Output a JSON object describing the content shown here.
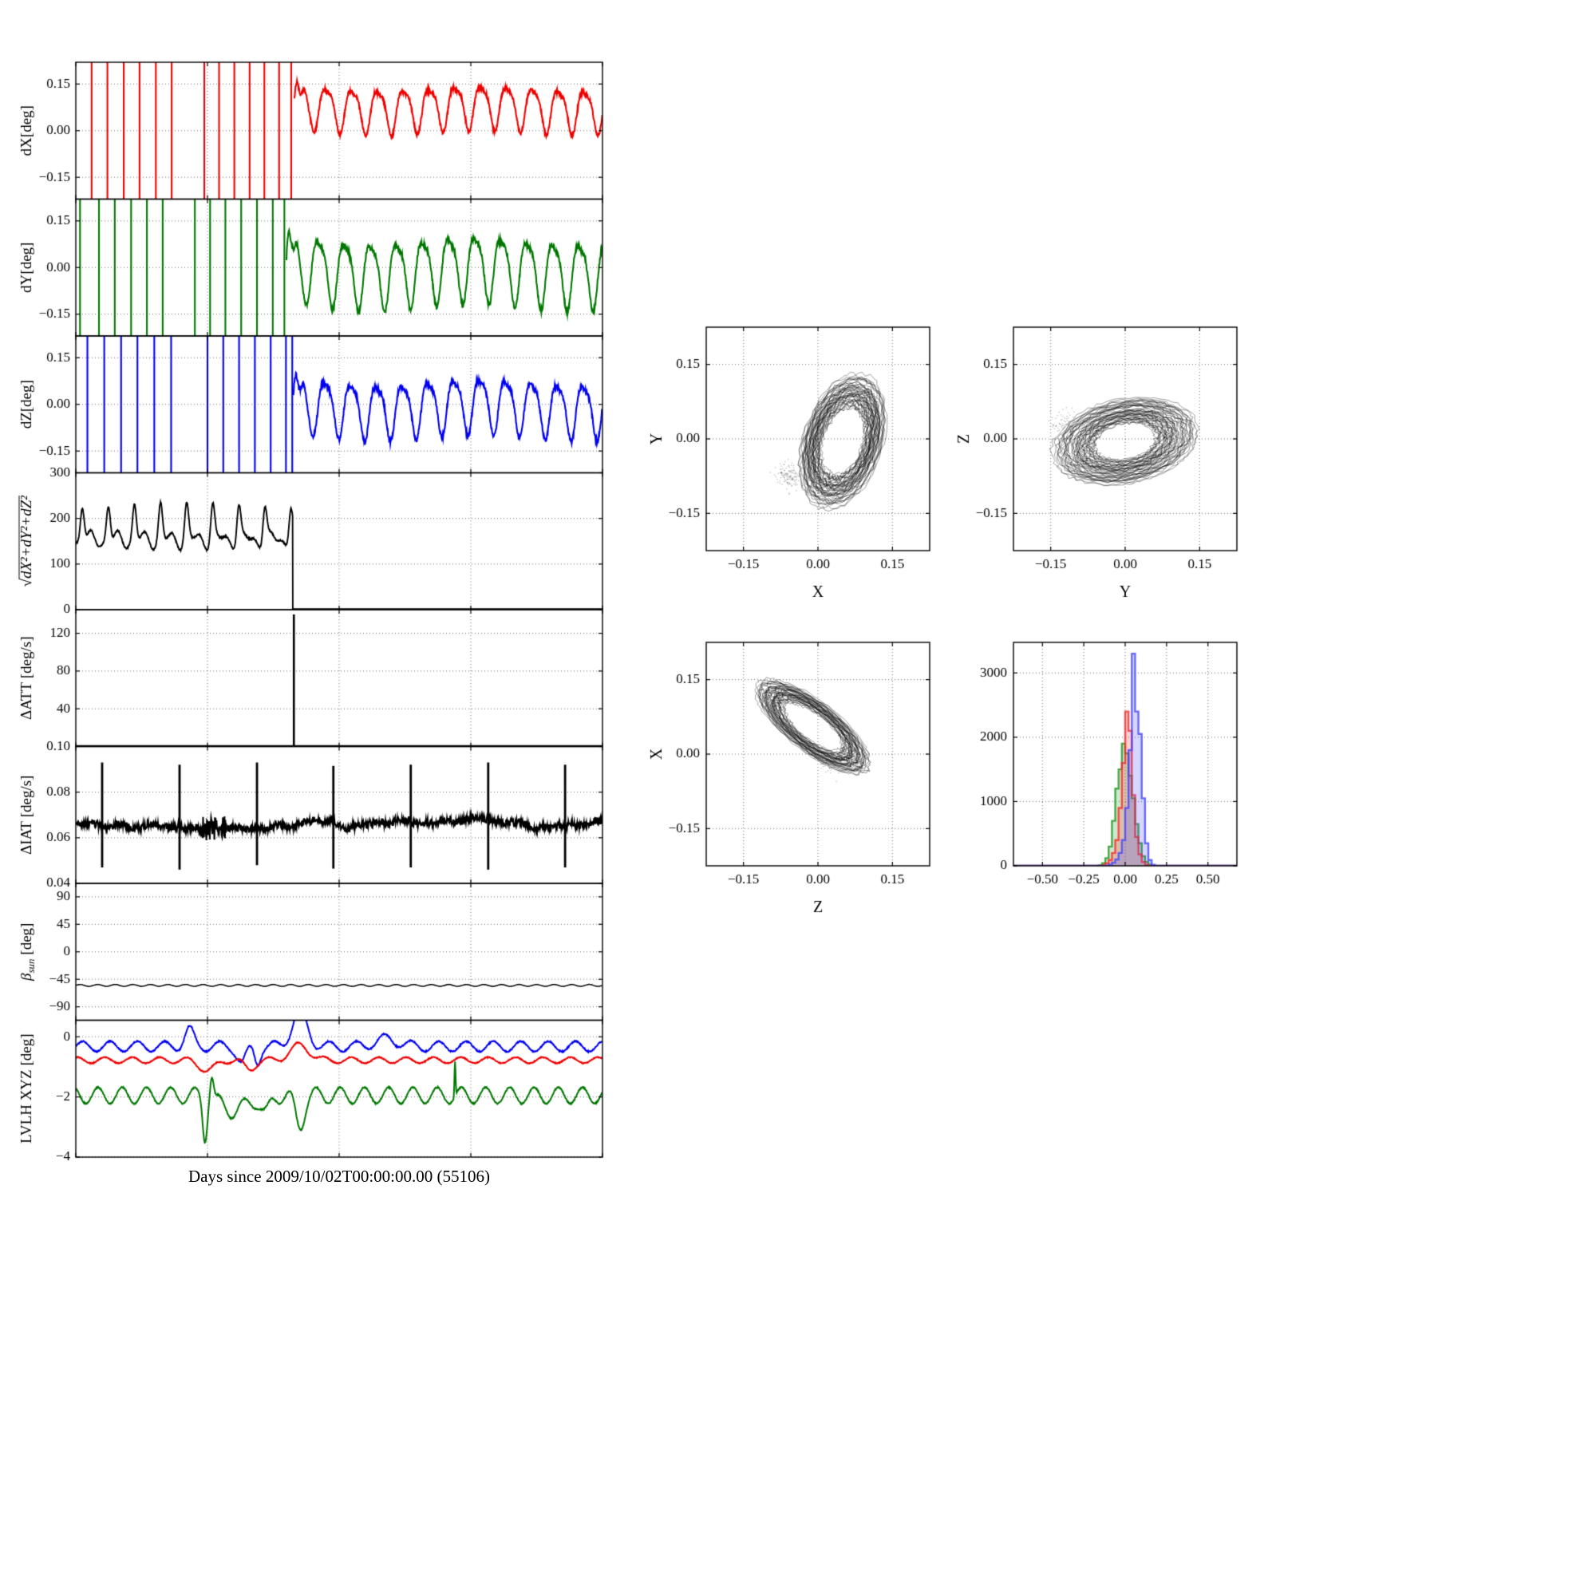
{
  "figure": {
    "background": "#ffffff",
    "xlabel": "Days since 2009/10/02T00:00:00.00 (55106)"
  },
  "chart_data": [
    {
      "id": "dX",
      "type": "line",
      "panel": 0,
      "color": "#ee0000",
      "ylabel_rich": [
        {
          "t": "dX[deg]"
        }
      ],
      "xlim": [
        0,
        1
      ],
      "ylim": [
        -0.22,
        0.22
      ],
      "ytick_vals": [
        -0.15,
        0.0,
        0.15
      ],
      "ytick_labels": [
        "−0.15",
        "0.00",
        "0.15"
      ],
      "grid": true,
      "signal": {
        "kind": "sat_osc",
        "spike_times": [
          0.03,
          0.06,
          0.091,
          0.121,
          0.152,
          0.182,
          0.244,
          0.272,
          0.301,
          0.33,
          0.358,
          0.386,
          0.409
        ],
        "osc": {
          "start": 0.415,
          "mean": 0.075,
          "amp": 0.068,
          "period": 0.049,
          "noise": 0.006
        }
      }
    },
    {
      "id": "dY",
      "type": "line",
      "panel": 1,
      "color": "#007700",
      "ylabel_rich": [
        {
          "t": "dY[deg]"
        }
      ],
      "xlim": [
        0,
        1
      ],
      "ylim": [
        -0.22,
        0.22
      ],
      "ytick_vals": [
        -0.15,
        0.0,
        0.15
      ],
      "ytick_labels": [
        "−0.15",
        "0.00",
        "0.15"
      ],
      "grid": true,
      "signal": {
        "kind": "sat_osc",
        "spike_times": [
          0.008,
          0.044,
          0.074,
          0.105,
          0.135,
          0.165,
          0.226,
          0.255,
          0.284,
          0.314,
          0.344,
          0.374,
          0.396
        ],
        "osc": {
          "start": 0.4,
          "mean": -0.005,
          "amp": 0.102,
          "period": 0.0495,
          "noise": 0.007
        }
      }
    },
    {
      "id": "dZ",
      "type": "line",
      "panel": 2,
      "color": "#0000ee",
      "ylabel_rich": [
        {
          "t": "dZ[deg]"
        }
      ],
      "xlim": [
        0,
        1
      ],
      "ylim": [
        -0.22,
        0.22
      ],
      "ytick_vals": [
        -0.15,
        0.0,
        0.15
      ],
      "ytick_labels": [
        "−0.15",
        "0.00",
        "0.15"
      ],
      "grid": true,
      "signal": {
        "kind": "sat_osc",
        "spike_times": [
          0.022,
          0.054,
          0.086,
          0.117,
          0.149,
          0.181,
          0.25,
          0.28,
          0.31,
          0.34,
          0.37,
          0.399,
          0.411
        ],
        "osc": {
          "start": 0.413,
          "mean": -0.005,
          "amp": 0.085,
          "period": 0.049,
          "noise": 0.007
        }
      }
    },
    {
      "id": "dnorm",
      "type": "line",
      "panel": 3,
      "color": "#000000",
      "ylabel_rich": [
        {
          "t": "√",
          "italic": true
        },
        {
          "t": "dX²+dY²+dZ²",
          "italic": true,
          "over": true
        }
      ],
      "xlim": [
        0,
        1
      ],
      "ylim": [
        0,
        300
      ],
      "ytick_vals": [
        0,
        100,
        200,
        300
      ],
      "ytick_labels": [
        "0",
        "100",
        "200",
        "300"
      ],
      "grid": true,
      "signal": {
        "kind": "peaks_drop",
        "drop": 0.412,
        "period": 0.0495,
        "base": 152,
        "peak": 80,
        "after_value": 1.5
      }
    },
    {
      "id": "dATT",
      "type": "line",
      "panel": 4,
      "color": "#000000",
      "ylabel_rich": [
        {
          "t": "ΔATT [deg/s]"
        }
      ],
      "xlim": [
        0,
        1
      ],
      "ylim": [
        0,
        145
      ],
      "ytick_vals": [
        40,
        80,
        120
      ],
      "ytick_labels": [
        "40",
        "80",
        "120"
      ],
      "grid": true,
      "signal": {
        "kind": "zero_spike",
        "t": 0.414,
        "height": 140,
        "baseline": 0.8
      }
    },
    {
      "id": "dIAT",
      "type": "line",
      "panel": 5,
      "color": "#000000",
      "ylabel_rich": [
        {
          "t": "ΔIAT [deg/s]"
        }
      ],
      "xlim": [
        0,
        1
      ],
      "ylim": [
        0.04,
        0.1
      ],
      "ytick_vals": [
        0.04,
        0.06,
        0.08,
        0.1
      ],
      "ytick_labels": [
        "0.04",
        "0.06",
        "0.08",
        "0.10"
      ],
      "grid": true,
      "signal": {
        "kind": "noisy_spikes",
        "baseline": 0.0655,
        "noise": 0.0016,
        "burst": [
          0.235,
          0.285
        ],
        "spikes": [
          {
            "t": 0.05,
            "hi": 0.093,
            "lo": 0.047
          },
          {
            "t": 0.197,
            "hi": 0.092,
            "lo": 0.046
          },
          {
            "t": 0.344,
            "hi": 0.093,
            "lo": 0.048
          },
          {
            "t": 0.489,
            "hi": 0.0915,
            "lo": 0.0465
          },
          {
            "t": 0.636,
            "hi": 0.092,
            "lo": 0.047
          },
          {
            "t": 0.783,
            "hi": 0.093,
            "lo": 0.046
          },
          {
            "t": 0.929,
            "hi": 0.092,
            "lo": 0.047
          }
        ]
      }
    },
    {
      "id": "beta_sun",
      "type": "line",
      "panel": 6,
      "color": "#000000",
      "ylabel_rich": [
        {
          "t": "β",
          "italic": true
        },
        {
          "t": "sun",
          "italic": true,
          "sub": true
        },
        {
          "t": " [deg]"
        }
      ],
      "xlim": [
        0,
        1
      ],
      "ylim": [
        -112,
        112
      ],
      "ytick_vals": [
        -90,
        -45,
        0,
        45,
        90
      ],
      "ytick_labels": [
        "−90",
        "−45",
        "0",
        "45",
        "90"
      ],
      "grid": true,
      "signal": {
        "kind": "const_ripple",
        "value": -55,
        "ripple": 1.5,
        "cycles": 30
      }
    },
    {
      "id": "lvlh",
      "type": "line",
      "panel": 7,
      "color": "#000000",
      "ylabel_rich": [
        {
          "t": "LVLH XYZ [deg]"
        }
      ],
      "xlim": [
        0,
        1
      ],
      "ylim": [
        -4,
        0.55
      ],
      "ytick_vals": [
        -4,
        -2,
        0
      ],
      "ytick_labels": [
        "−4",
        "−2",
        "0"
      ],
      "grid": true,
      "signal": {
        "kind": "multi_osc",
        "series": [
          {
            "name": "Z",
            "color": "#0000ee",
            "base": -0.32,
            "amp": 0.17,
            "period": 0.052,
            "phase": 0.0,
            "noise": 0.02,
            "events": [
              {
                "tc": 0.215,
                "w": 0.012,
                "h": 0.55
              },
              {
                "tc": 0.315,
                "w": 0.012,
                "h": -0.55
              },
              {
                "tc": 0.345,
                "w": 0.008,
                "h": -0.5
              },
              {
                "tc": 0.425,
                "w": 0.02,
                "h": 1.15
              },
              {
                "tc": 0.59,
                "w": 0.03,
                "h": 0.25
              }
            ]
          },
          {
            "name": "X",
            "color": "#ee0000",
            "base": -0.78,
            "amp": 0.1,
            "period": 0.052,
            "phase": 1.2,
            "noise": 0.015,
            "events": [
              {
                "tc": 0.25,
                "w": 0.02,
                "h": -0.35
              },
              {
                "tc": 0.33,
                "w": 0.015,
                "h": -0.3
              },
              {
                "tc": 0.425,
                "w": 0.025,
                "h": 0.5
              }
            ]
          },
          {
            "name": "Y",
            "color": "#007700",
            "base": -1.95,
            "amp": 0.27,
            "period": 0.046,
            "phase": 2.1,
            "noise": 0.02,
            "events": [
              {
                "tc": 0.245,
                "w": 0.006,
                "h": -1.3
              },
              {
                "tc": 0.258,
                "w": 0.005,
                "h": 0.8
              },
              {
                "tc": 0.3,
                "w": 0.035,
                "h": -0.5
              },
              {
                "tc": 0.36,
                "w": 0.012,
                "h": -0.6
              },
              {
                "tc": 0.425,
                "w": 0.012,
                "h": -1.0
              },
              {
                "tc": 0.72,
                "w": 0.0015,
                "h": 1.15
              }
            ]
          }
        ]
      }
    },
    {
      "id": "xy",
      "type": "trajectory-scatter",
      "xlabel": "X",
      "ylabel": "Y",
      "xlim": [
        -0.225,
        0.225
      ],
      "ylim": [
        -0.225,
        0.225
      ],
      "tick_vals": [
        -0.15,
        0.0,
        0.15
      ],
      "tick_labels": [
        "−0.15",
        "0.00",
        "0.15"
      ],
      "grid": true,
      "traj": {
        "n": 3600,
        "center": [
          0.05,
          -0.005
        ],
        "rx": 0.06,
        "ry": 0.105,
        "tilt_deg": -18,
        "rnoise": 0.22
      },
      "extra_dots": {
        "n": 130,
        "center": [
          -0.06,
          -0.075
        ],
        "sd": 0.013
      }
    },
    {
      "id": "yz",
      "type": "trajectory-scatter",
      "xlabel": "Y",
      "ylabel": "Z",
      "xlim": [
        -0.225,
        0.225
      ],
      "ylim": [
        -0.225,
        0.225
      ],
      "tick_vals": [
        -0.15,
        0.0,
        0.15
      ],
      "tick_labels": [
        "−0.15",
        "0.00",
        "0.15"
      ],
      "grid": true,
      "traj": {
        "n": 3600,
        "center": [
          0.0,
          -0.005
        ],
        "rx": 0.105,
        "ry": 0.06,
        "tilt_deg": 12,
        "rnoise": 0.3
      },
      "extra_dots": {
        "n": 80,
        "center": [
          -0.12,
          0.03
        ],
        "sd": 0.015
      }
    },
    {
      "id": "zx",
      "type": "trajectory-scatter",
      "xlabel": "Z",
      "ylabel": "X",
      "xlim": [
        -0.225,
        0.225
      ],
      "ylim": [
        -0.225,
        0.225
      ],
      "tick_vals": [
        -0.15,
        0.0,
        0.15
      ],
      "tick_labels": [
        "−0.15",
        "0.00",
        "0.15"
      ],
      "grid": true,
      "traj": {
        "n": 3200,
        "center": [
          -0.01,
          0.055
        ],
        "rx": 0.105,
        "ry": 0.038,
        "tilt_deg": -38,
        "rnoise": 0.22
      },
      "extra_dots": {
        "n": 40,
        "center": [
          0.02,
          -0.02
        ],
        "sd": 0.01
      }
    },
    {
      "id": "hist",
      "type": "histogram",
      "xlim": [
        -0.675,
        0.675
      ],
      "ylim": [
        0,
        3475
      ],
      "xtick_vals": [
        -0.5,
        -0.25,
        0.0,
        0.25,
        0.5
      ],
      "xtick_labels": [
        "−0.50",
        "−0.25",
        "0.00",
        "0.25",
        "0.50"
      ],
      "ytick_vals": [
        0,
        1000,
        2000,
        3000
      ],
      "ytick_labels": [
        "0",
        "1000",
        "2000",
        "3000"
      ],
      "grid": true,
      "bin_edges_start": -0.2,
      "bin_width": 0.02,
      "series": [
        {
          "name": "dY",
          "color": "#1e961e",
          "counts": [
            0,
            0,
            10,
            40,
            120,
            300,
            700,
            1200,
            1500,
            1900,
            1750,
            1400,
            1050,
            650,
            350,
            150,
            60,
            20,
            5,
            0
          ]
        },
        {
          "name": "dX",
          "color": "#ff2828",
          "counts": [
            0,
            0,
            0,
            10,
            40,
            90,
            200,
            400,
            900,
            1600,
            2400,
            2100,
            1100,
            450,
            180,
            60,
            15,
            0,
            0,
            0
          ]
        },
        {
          "name": "dZ",
          "color": "#4646ff",
          "counts": [
            0,
            0,
            0,
            0,
            0,
            20,
            50,
            100,
            200,
            400,
            900,
            1800,
            3300,
            2400,
            2050,
            1050,
            350,
            90,
            15,
            0
          ]
        }
      ]
    }
  ]
}
